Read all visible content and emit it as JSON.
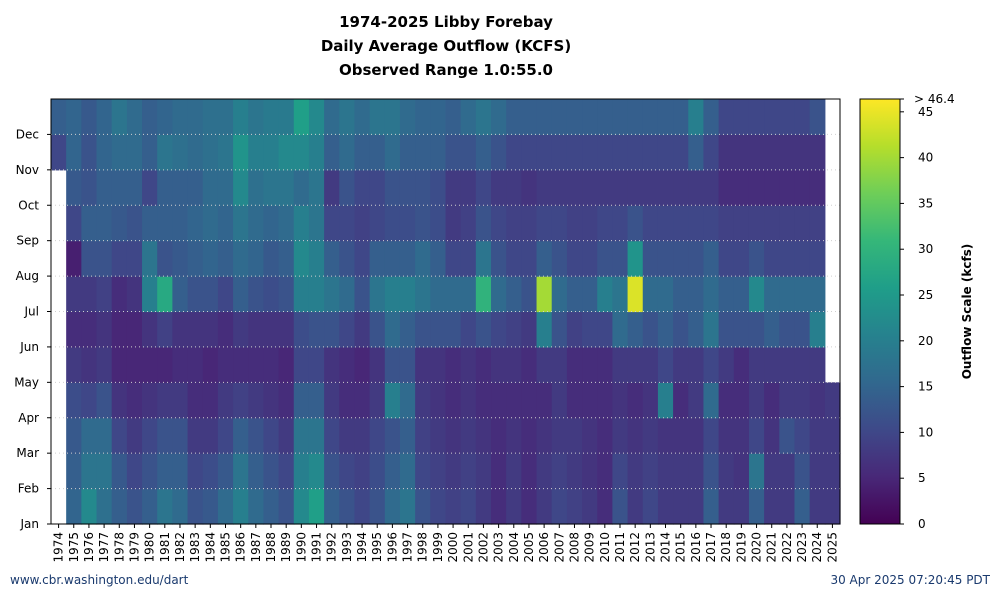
{
  "footer": {
    "source": "www.cbr.washington.edu/dart",
    "timestamp": "30 Apr 2025 07:20:45 PDT"
  },
  "chart_data": {
    "type": "heatmap",
    "title_lines": [
      "1974-2025 Libby Forebay",
      "Daily Average Outflow (KCFS)",
      "Observed Range 1.0:55.0"
    ],
    "xlabel": "",
    "ylabel": "",
    "x_years": [
      1974,
      1975,
      1976,
      1977,
      1978,
      1979,
      1980,
      1981,
      1982,
      1983,
      1984,
      1985,
      1986,
      1987,
      1988,
      1989,
      1990,
      1991,
      1992,
      1993,
      1994,
      1995,
      1996,
      1997,
      1998,
      1999,
      2000,
      2001,
      2002,
      2003,
      2004,
      2005,
      2006,
      2007,
      2008,
      2009,
      2010,
      2011,
      2012,
      2013,
      2014,
      2015,
      2016,
      2017,
      2018,
      2019,
      2020,
      2021,
      2022,
      2023,
      2024,
      2025
    ],
    "y_months": [
      "Jan",
      "Feb",
      "Mar",
      "Apr",
      "May",
      "Jun",
      "Jul",
      "Aug",
      "Sep",
      "Oct",
      "Nov",
      "Dec"
    ],
    "colorbar": {
      "label": "Outflow Scale (kcfs)",
      "ticks": [
        0,
        5,
        10,
        15,
        20,
        25,
        30,
        35,
        40,
        45
      ],
      "max_label": "> 46.4",
      "range": [
        0,
        46.4
      ],
      "colormap": "viridis",
      "stops": [
        "#440154",
        "#482878",
        "#3e4989",
        "#31688e",
        "#26828e",
        "#1f9e89",
        "#35b779",
        "#6ece58",
        "#b5de2b",
        "#fde725"
      ]
    },
    "monthly_outflow_kcfs": [
      [
        null,
        null,
        null,
        null,
        null,
        null,
        null,
        null,
        null,
        null,
        10,
        14
      ],
      [
        15,
        14,
        13,
        11,
        8,
        6,
        8,
        4,
        10,
        13,
        15,
        15
      ],
      [
        22,
        18,
        16,
        10,
        7,
        6,
        8,
        12,
        14,
        12,
        12,
        13
      ],
      [
        17,
        18,
        16,
        12,
        8,
        7,
        9,
        12,
        14,
        14,
        15,
        15
      ],
      [
        14,
        13,
        10,
        7,
        5,
        5,
        6,
        10,
        13,
        14,
        16,
        18
      ],
      [
        12,
        10,
        8,
        6,
        5,
        5,
        7,
        10,
        12,
        14,
        16,
        16
      ],
      [
        14,
        12,
        10,
        7,
        5,
        7,
        20,
        18,
        14,
        10,
        14,
        14
      ],
      [
        18,
        14,
        12,
        8,
        5,
        9,
        28,
        12,
        14,
        14,
        18,
        15
      ],
      [
        16,
        14,
        12,
        8,
        6,
        7,
        14,
        13,
        14,
        14,
        17,
        16
      ],
      [
        12,
        10,
        8,
        6,
        6,
        7,
        12,
        14,
        15,
        14,
        16,
        16
      ],
      [
        13,
        11,
        8,
        6,
        5,
        7,
        12,
        15,
        16,
        16,
        17,
        17
      ],
      [
        16,
        13,
        10,
        8,
        6,
        6,
        10,
        14,
        15,
        16,
        18,
        17
      ],
      [
        20,
        18,
        14,
        9,
        6,
        8,
        14,
        16,
        18,
        22,
        24,
        20
      ],
      [
        16,
        14,
        12,
        8,
        6,
        7,
        12,
        15,
        16,
        17,
        20,
        18
      ],
      [
        14,
        12,
        10,
        7,
        6,
        7,
        11,
        13,
        15,
        18,
        20,
        19
      ],
      [
        12,
        10,
        8,
        6,
        5,
        7,
        12,
        14,
        16,
        18,
        22,
        19
      ],
      [
        22,
        20,
        18,
        14,
        10,
        11,
        20,
        22,
        20,
        16,
        22,
        26
      ],
      [
        26,
        22,
        18,
        14,
        10,
        12,
        20,
        20,
        18,
        18,
        20,
        22
      ],
      [
        14,
        12,
        10,
        8,
        7,
        12,
        18,
        14,
        10,
        8,
        14,
        16
      ],
      [
        12,
        10,
        8,
        6,
        6,
        10,
        16,
        12,
        10,
        12,
        16,
        18
      ],
      [
        10,
        9,
        8,
        6,
        5,
        8,
        12,
        10,
        9,
        10,
        14,
        16
      ],
      [
        12,
        11,
        10,
        8,
        7,
        12,
        18,
        14,
        10,
        10,
        14,
        18
      ],
      [
        16,
        14,
        12,
        20,
        12,
        16,
        20,
        14,
        11,
        12,
        16,
        18
      ],
      [
        18,
        16,
        14,
        16,
        12,
        14,
        20,
        14,
        11,
        12,
        14,
        16
      ],
      [
        12,
        10,
        9,
        8,
        7,
        12,
        18,
        16,
        12,
        12,
        14,
        15
      ],
      [
        10,
        9,
        8,
        7,
        7,
        12,
        16,
        14,
        11,
        11,
        14,
        15
      ],
      [
        9,
        8,
        7,
        6,
        6,
        12,
        16,
        10,
        8,
        8,
        12,
        14
      ],
      [
        10,
        9,
        8,
        7,
        7,
        10,
        16,
        10,
        9,
        8,
        12,
        16
      ],
      [
        8,
        8,
        7,
        6,
        6,
        12,
        30,
        18,
        12,
        10,
        14,
        18
      ],
      [
        6,
        6,
        6,
        6,
        7,
        10,
        16,
        12,
        10,
        8,
        12,
        16
      ],
      [
        8,
        8,
        7,
        6,
        7,
        9,
        14,
        10,
        9,
        8,
        10,
        14
      ],
      [
        6,
        6,
        6,
        6,
        6,
        8,
        12,
        10,
        9,
        7,
        10,
        14
      ],
      [
        8,
        8,
        7,
        6,
        8,
        20,
        40,
        14,
        10,
        8,
        10,
        14
      ],
      [
        10,
        9,
        8,
        8,
        8,
        12,
        16,
        12,
        10,
        8,
        10,
        14
      ],
      [
        9,
        8,
        8,
        6,
        6,
        9,
        14,
        10,
        9,
        8,
        10,
        14
      ],
      [
        8,
        7,
        7,
        6,
        6,
        10,
        14,
        10,
        9,
        8,
        10,
        14
      ],
      [
        6,
        6,
        6,
        6,
        6,
        10,
        20,
        12,
        10,
        8,
        10,
        14
      ],
      [
        12,
        10,
        8,
        7,
        8,
        16,
        18,
        12,
        10,
        8,
        10,
        14
      ],
      [
        8,
        8,
        7,
        6,
        8,
        14,
        44,
        24,
        12,
        8,
        10,
        14
      ],
      [
        10,
        9,
        8,
        7,
        8,
        12,
        16,
        12,
        10,
        8,
        10,
        14
      ],
      [
        8,
        8,
        7,
        20,
        10,
        14,
        16,
        12,
        10,
        8,
        10,
        14
      ],
      [
        8,
        8,
        7,
        6,
        8,
        12,
        14,
        12,
        10,
        8,
        10,
        14
      ],
      [
        8,
        8,
        7,
        8,
        8,
        14,
        14,
        12,
        10,
        8,
        14,
        20
      ],
      [
        14,
        12,
        10,
        16,
        10,
        18,
        16,
        14,
        10,
        8,
        10,
        14
      ],
      [
        8,
        8,
        7,
        6,
        8,
        12,
        14,
        10,
        9,
        6,
        7,
        10
      ],
      [
        8,
        7,
        7,
        6,
        6,
        12,
        14,
        10,
        9,
        6,
        7,
        10
      ],
      [
        14,
        18,
        10,
        8,
        8,
        12,
        22,
        12,
        9,
        6,
        7,
        10
      ],
      [
        8,
        8,
        7,
        6,
        8,
        14,
        16,
        10,
        9,
        6,
        7,
        10
      ],
      [
        8,
        8,
        12,
        8,
        8,
        12,
        16,
        10,
        9,
        6,
        7,
        10
      ],
      [
        14,
        12,
        10,
        8,
        8,
        12,
        16,
        10,
        9,
        6,
        7,
        10
      ],
      [
        8,
        8,
        8,
        7,
        8,
        20,
        16,
        10,
        9,
        6,
        7,
        12
      ],
      [
        8,
        8,
        8,
        8,
        null,
        null,
        null,
        null,
        null,
        null,
        null,
        null
      ]
    ]
  }
}
